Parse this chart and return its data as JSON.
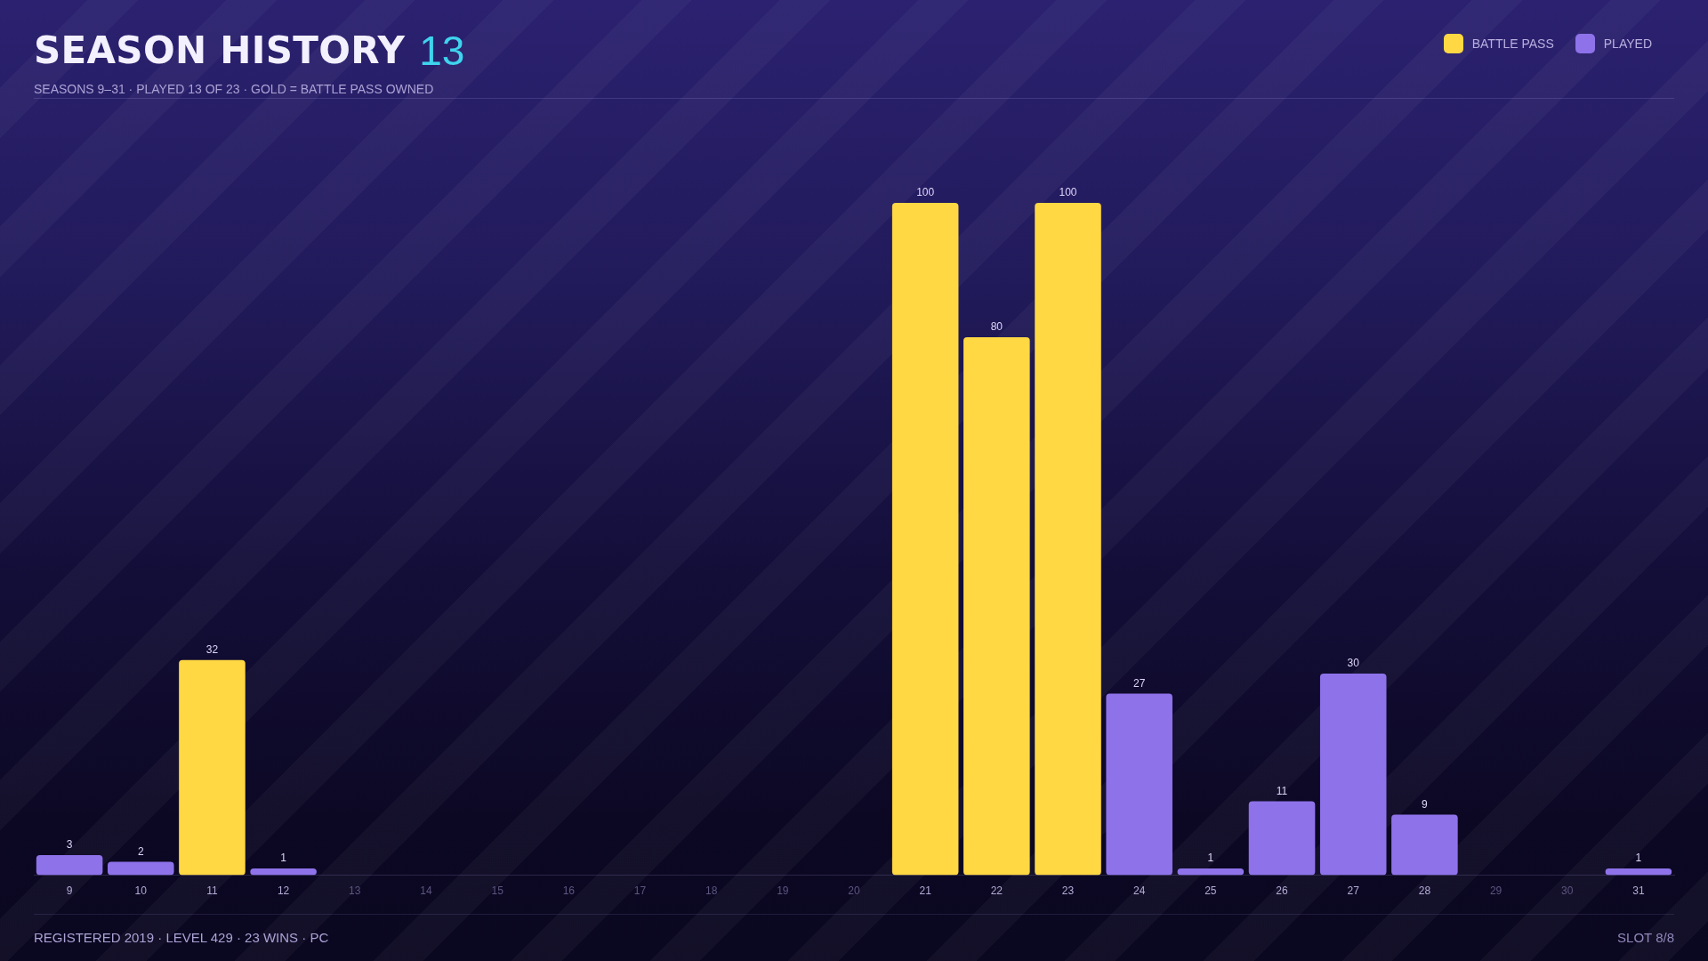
{
  "chart_data": {
    "type": "bar",
    "title": "SEASON HISTORY",
    "subtitle": "SEASONS 9–31 · PLAYED 13 OF 23 · GOLD = BATTLE PASS OWNED",
    "categories": [
      "9",
      "10",
      "11",
      "12",
      "13",
      "14",
      "15",
      "16",
      "17",
      "18",
      "19",
      "20",
      "21",
      "22",
      "23",
      "24",
      "25",
      "26",
      "27",
      "28",
      "29",
      "30",
      "31"
    ],
    "series": [
      {
        "name": "BATTLE PASS",
        "color": "#ffd843",
        "values": [
          null,
          null,
          32,
          null,
          null,
          null,
          null,
          null,
          null,
          null,
          null,
          null,
          100,
          80,
          100,
          null,
          null,
          null,
          null,
          null,
          null,
          null,
          null
        ]
      },
      {
        "name": "PLAYED",
        "color": "#8e72ea",
        "values": [
          3,
          2,
          null,
          1,
          null,
          null,
          null,
          null,
          null,
          null,
          null,
          null,
          null,
          null,
          null,
          27,
          1,
          11,
          30,
          9,
          null,
          null,
          1
        ]
      }
    ],
    "ylim": [
      0,
      100
    ],
    "tick_labels": "x",
    "data_labels": true,
    "legend": "top right",
    "annotations": [
      "13",
      "REGISTERED 2019 · LEVEL 429 · 23 WINS · PC",
      "SLOT 8/8"
    ]
  }
}
